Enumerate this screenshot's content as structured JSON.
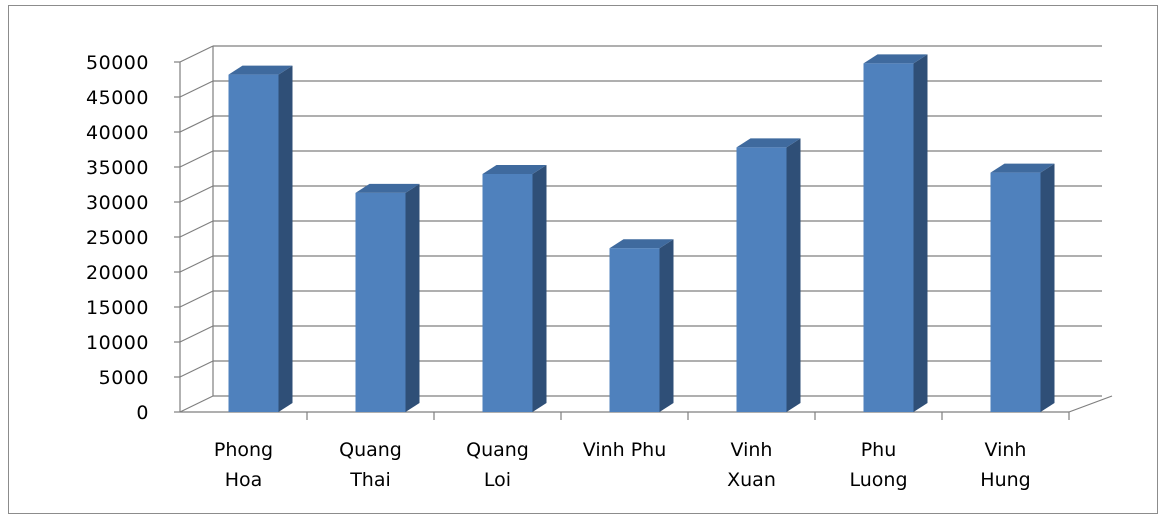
{
  "chart_data": {
    "type": "bar",
    "title": "",
    "xlabel": "",
    "ylabel": "",
    "ylim": [
      0,
      50000
    ],
    "yticks": [
      "0",
      "5000",
      "10000",
      "15000",
      "20000",
      "25000",
      "30000",
      "35000",
      "40000",
      "45000",
      "50000"
    ],
    "categories": [
      [
        "Phong",
        "Hoa"
      ],
      [
        "Quang",
        "Thai"
      ],
      [
        "Quang",
        "Loi"
      ],
      [
        "Vinh Phu"
      ],
      [
        "Vinh",
        "Xuan"
      ],
      [
        "Phu",
        "Luong"
      ],
      [
        "Vinh",
        "Hung"
      ]
    ],
    "values": [
      48200,
      31300,
      34000,
      23400,
      37800,
      49800,
      34200
    ],
    "grid": true,
    "legend": "none",
    "colors": {
      "bar_front": "#4F81BD",
      "bar_side": "#2F4F77",
      "bar_top": "#3F6A9E",
      "grid": "#7f7f7f"
    }
  }
}
